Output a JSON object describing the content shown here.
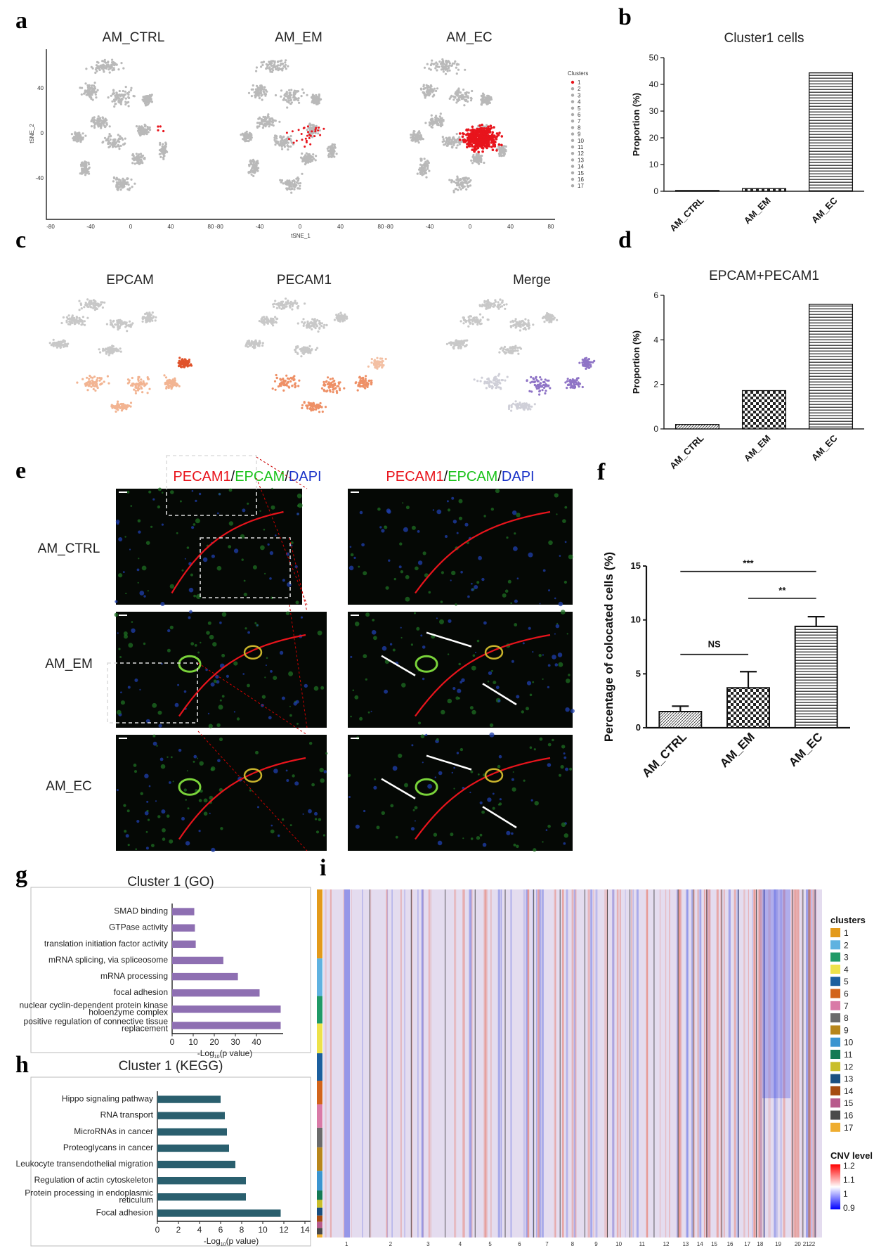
{
  "panel_letters": [
    "a",
    "b",
    "c",
    "d",
    "e",
    "f",
    "g",
    "h",
    "i"
  ],
  "panel_a": {
    "titles": [
      "AM_CTRL",
      "AM_EM",
      "AM_EC"
    ],
    "xlabel": "tSNE_1",
    "ylabel": "tSNE_2",
    "xticks": [
      "-80",
      "-40",
      "0",
      "40",
      "80"
    ],
    "yticks": [
      "40",
      "0",
      "-40"
    ],
    "legend_title": "Clusters",
    "legend_items": [
      "1",
      "2",
      "3",
      "4",
      "5",
      "6",
      "7",
      "8",
      "9",
      "10",
      "11",
      "12",
      "13",
      "14",
      "15",
      "16",
      "17"
    ],
    "highlight_color": "#e8141c",
    "base_color": "#b9b9b9"
  },
  "panel_c": {
    "titles": [
      "EPCAM",
      "PECAM1",
      "Merge"
    ],
    "colors": {
      "epcam": "#e0522a",
      "pecam": "#e05a2b",
      "merge": "#8f74c6",
      "base": "#c8c8c8"
    }
  },
  "panel_e": {
    "col_title_parts": [
      {
        "text": "PECAM1",
        "color": "#e8141c"
      },
      {
        "text": "/",
        "color": "#111111"
      },
      {
        "text": "EPCAM",
        "color": "#19c219"
      },
      {
        "text": "/",
        "color": "#111111"
      },
      {
        "text": "DAPI",
        "color": "#1a33c8"
      }
    ],
    "rows": [
      "AM_CTRL",
      "AM_EM",
      "AM_EC"
    ]
  },
  "panel_i": {
    "legend_title": "clusters",
    "cluster_labels": [
      "1",
      "2",
      "3",
      "4",
      "5",
      "6",
      "7",
      "8",
      "9",
      "10",
      "11",
      "12",
      "13",
      "14",
      "15",
      "16",
      "17"
    ],
    "cluster_colors": [
      "#e39a1a",
      "#5fb2e0",
      "#1f9a67",
      "#ede24a",
      "#1c5f9e",
      "#d2641b",
      "#d97aa7",
      "#6b6b6b",
      "#b7861b",
      "#3b95d0",
      "#157a55",
      "#c9be2a",
      "#1a4f80",
      "#a64c11",
      "#b85b8c",
      "#4a4a4a",
      "#efad30"
    ],
    "cnv_title": "CNV level",
    "cnv_ticks": [
      "1.2",
      "1.1",
      "1",
      "0.9"
    ],
    "chromosomes": [
      "1",
      "2",
      "3",
      "4",
      "5",
      "6",
      "7",
      "8",
      "9",
      "10",
      "11",
      "12",
      "13",
      "14",
      "15",
      "16",
      "17",
      "18",
      "19",
      "20",
      "21",
      "22"
    ]
  },
  "chart_data": [
    {
      "panel": "b",
      "type": "bar",
      "title": "Cluster1 cells",
      "ylabel": "Proportion (%)",
      "categories": [
        "AM_CTRL",
        "AM_EM",
        "AM_EC"
      ],
      "values": [
        0.3,
        1.0,
        44.3
      ],
      "ylim": [
        0,
        50
      ],
      "yticks": [
        "0",
        "10",
        "20",
        "30",
        "40",
        "50"
      ],
      "patterns": [
        "hatch-diag",
        "checker",
        "hlines"
      ]
    },
    {
      "panel": "d",
      "type": "bar",
      "title": "EPCAM+PECAM1",
      "ylabel": "Proportion (%)",
      "categories": [
        "AM_CTRL",
        "AM_EM",
        "AM_EC"
      ],
      "values": [
        0.2,
        1.72,
        5.6
      ],
      "ylim": [
        0,
        6
      ],
      "yticks": [
        "0",
        "2",
        "4",
        "6"
      ],
      "patterns": [
        "hatch-diag",
        "checker",
        "hlines"
      ]
    },
    {
      "panel": "f",
      "type": "bar",
      "ylabel": "Percentage of colocated cells (%)",
      "categories": [
        "AM_CTRL",
        "AM_EM",
        "AM_EC"
      ],
      "values": [
        1.5,
        3.7,
        9.4
      ],
      "errors": [
        0.5,
        1.5,
        0.9
      ],
      "ylim": [
        0,
        15
      ],
      "yticks": [
        "0",
        "5",
        "10",
        "15"
      ],
      "significance": [
        {
          "from": "AM_CTRL",
          "to": "AM_EC",
          "label": "***"
        },
        {
          "from": "AM_EM",
          "to": "AM_EC",
          "label": "**"
        },
        {
          "from": "AM_CTRL",
          "to": "AM_EM",
          "label": "NS"
        }
      ]
    },
    {
      "panel": "g",
      "type": "bar",
      "orientation": "horizontal",
      "title": "Cluster 1 (GO)",
      "xlabel_main": "-Log",
      "xlabel_sub": "10",
      "xlabel_tail": "(p value)",
      "categories": [
        "SMAD binding",
        "GTPase activity",
        "translation initiation factor activity",
        "mRNA splicing, via spliceosome",
        "mRNA processing",
        "focal adhesion",
        "nuclear cyclin-dependent protein kinase holoenzyme complex",
        "positive regulation of connective tissue replacement"
      ],
      "category_lines": [
        [
          "SMAD binding"
        ],
        [
          "GTPase activity"
        ],
        [
          "translation initiation factor activity"
        ],
        [
          "mRNA splicing, via spliceosome"
        ],
        [
          "mRNA processing"
        ],
        [
          "focal adhesion"
        ],
        [
          "nuclear cyclin-dependent protein kinase",
          "holoenzyme complex"
        ],
        [
          "positive regulation of connective tissue",
          "replacement"
        ]
      ],
      "values": [
        10.5,
        10.8,
        11.2,
        24.3,
        31.2,
        41.5,
        51.5,
        51.5
      ],
      "xlim": [
        0,
        50
      ],
      "xticks": [
        "0",
        "10",
        "20",
        "30",
        "40"
      ],
      "color": "#8e6fb2"
    },
    {
      "panel": "h",
      "type": "bar",
      "orientation": "horizontal",
      "title": "Cluster 1 (KEGG)",
      "xlabel_main": "-Log",
      "xlabel_sub": "10",
      "xlabel_tail": "(p value)",
      "categories": [
        "Hippo signaling pathway",
        "RNA transport",
        "MicroRNAs in cancer",
        "Proteoglycans in cancer",
        "Leukocyte transendothelial migration",
        "Regulation of actin cytoskeleton",
        "Protein processing in endoplasmic reticulum",
        "Focal adhesion"
      ],
      "category_lines": [
        [
          "Hippo signaling pathway"
        ],
        [
          "RNA transport"
        ],
        [
          "MicroRNAs in cancer"
        ],
        [
          "Proteoglycans in cancer"
        ],
        [
          "Leukocyte transendothelial migration"
        ],
        [
          "Regulation of actin cytoskeleton"
        ],
        [
          "Protein processing in endoplasmic",
          "reticulum"
        ],
        [
          "Focal adhesion"
        ]
      ],
      "values": [
        6.0,
        6.4,
        6.6,
        6.8,
        7.4,
        8.4,
        8.4,
        11.7
      ],
      "xlim": [
        0,
        14
      ],
      "xticks": [
        "0",
        "2",
        "4",
        "6",
        "8",
        "10",
        "12",
        "14"
      ],
      "color": "#2a5f6e"
    }
  ]
}
